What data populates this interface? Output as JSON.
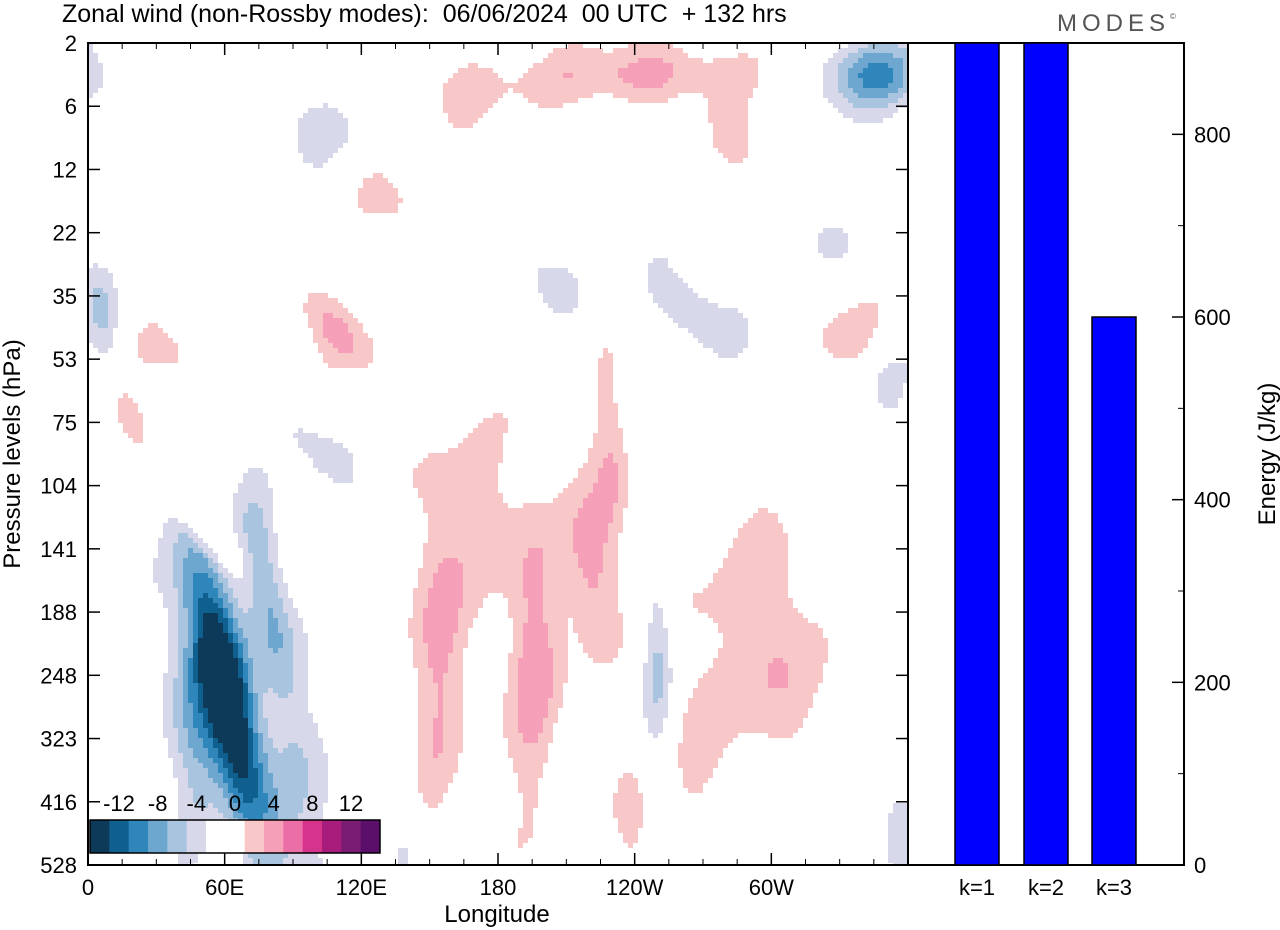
{
  "header": {
    "title": "Zonal wind (non-Rossby modes):  06/06/2024  00 UTC  + 132 hrs",
    "brand": "MODES",
    "brand_mark": "©"
  },
  "chart_data": [
    {
      "type": "heatmap",
      "xlabel": "Longitude",
      "ylabel": "Pressure levels (hPa)",
      "x_ticks": [
        "0",
        "60E",
        "120E",
        "180",
        "120W",
        "60W"
      ],
      "x_tick_values": [
        0,
        60,
        120,
        180,
        240,
        300
      ],
      "xlim": [
        0,
        360
      ],
      "y_ticks": [
        "2",
        "6",
        "12",
        "22",
        "35",
        "53",
        "75",
        "104",
        "141",
        "188",
        "248",
        "323",
        "416",
        "528"
      ],
      "colorbar": {
        "labels": [
          "-12",
          "-8",
          "-4",
          "0",
          "4",
          "8",
          "12"
        ],
        "label_values": [
          -12,
          -8,
          -4,
          0,
          4,
          8,
          12
        ],
        "colors": [
          "#0e3a5a",
          "#0f5f8f",
          "#2f86bb",
          "#6da6cf",
          "#a9c4df",
          "#d7d9ea",
          "#ffffff",
          "#ffffff",
          "#f8c7c7",
          "#f5a0b8",
          "#ec6ea6",
          "#d6338c",
          "#a81c7c",
          "#7a1c72",
          "#5b0f6a"
        ]
      },
      "blobs": [
        {
          "lon": 60,
          "lev": 10.2,
          "a": -15,
          "sx": 12,
          "sy": 1.6,
          "r": 0.75
        },
        {
          "lon": 80,
          "lev": 8.9,
          "a": -6,
          "sx": 9,
          "sy": 1.3,
          "r": 0.65
        },
        {
          "lon": 45,
          "lev": 10.6,
          "a": -4,
          "sx": 8,
          "sy": 1.2,
          "r": 0.3
        },
        {
          "lon": 65,
          "lev": 11.4,
          "a": -3,
          "sx": 22,
          "sy": 1.6,
          "r": 0.2
        },
        {
          "lon": 50,
          "lev": 7.6,
          "a": 5,
          "sx": 12,
          "sy": 0.5,
          "r": 0.85
        },
        {
          "lon": 100,
          "lev": 6.4,
          "a": -3,
          "sx": 14,
          "sy": 0.5,
          "r": 0.8
        },
        {
          "lon": 43,
          "lev": 5.1,
          "a": 2.5,
          "sx": 16,
          "sy": 0.45,
          "r": 0.7
        },
        {
          "lon": 108,
          "lev": 4.5,
          "a": 4.5,
          "sx": 14,
          "sy": 0.5,
          "r": 0.7
        },
        {
          "lon": 5,
          "lev": 4.2,
          "a": -4,
          "sx": 6,
          "sy": 0.6,
          "r": 0.5
        },
        {
          "lon": 153,
          "lev": 9.5,
          "a": 4.5,
          "sx": 9,
          "sy": 1.8,
          "r": 0
        },
        {
          "lon": 195,
          "lev": 9.6,
          "a": 5,
          "sx": 9,
          "sy": 1.8,
          "r": 0
        },
        {
          "lon": 222,
          "lev": 8.4,
          "a": 5,
          "sx": 8,
          "sy": 1.0,
          "r": 0.2
        },
        {
          "lon": 265,
          "lev": 10.2,
          "a": 2.5,
          "sx": 10,
          "sy": 2.0,
          "r": 0
        },
        {
          "lon": 300,
          "lev": 9.5,
          "a": 4.5,
          "sx": 13,
          "sy": 1.4,
          "r": 0
        },
        {
          "lon": 250,
          "lev": 9.7,
          "a": -5,
          "sx": 5,
          "sy": 1.1,
          "r": 0
        },
        {
          "lon": 240,
          "lev": 12.5,
          "a": 3,
          "sx": 6,
          "sy": 0.7,
          "r": 0
        },
        {
          "lon": 345,
          "lev": 0.5,
          "a": -8,
          "sx": 16,
          "sy": 0.4,
          "r": 0
        },
        {
          "lon": 245,
          "lev": 0.5,
          "a": 5,
          "sx": 30,
          "sy": 0.35,
          "r": -0.2
        },
        {
          "lon": 265,
          "lev": 4.2,
          "a": -4,
          "sx": 15,
          "sy": 0.5,
          "r": 0.6
        },
        {
          "lon": 230,
          "lev": 6.6,
          "a": 4,
          "sx": 6,
          "sy": 1.0,
          "r": 0
        },
        {
          "lon": 170,
          "lev": 7.4,
          "a": 2.5,
          "sx": 14,
          "sy": 1.0,
          "r": 0
        },
        {
          "lon": 60,
          "lev": 14.0,
          "a": 4,
          "sx": 8,
          "sy": 1.4,
          "r": 0
        },
        {
          "lon": 100,
          "lev": 12.8,
          "a": -2.5,
          "sx": 12,
          "sy": 1.1,
          "r": 0
        },
        {
          "lon": 335,
          "lev": 4.6,
          "a": 3,
          "sx": 14,
          "sy": 0.5,
          "r": 0
        },
        {
          "lon": 350,
          "lev": 5.2,
          "a": -3,
          "sx": 8,
          "sy": 0.6,
          "r": 0
        },
        {
          "lon": 160,
          "lev": 0.7,
          "a": 2.5,
          "sx": 25,
          "sy": 0.45,
          "r": -0.2
        },
        {
          "lon": 100,
          "lev": 1.3,
          "a": -2.5,
          "sx": 20,
          "sy": 0.45,
          "r": 0.3
        },
        {
          "lon": 20,
          "lev": 6.0,
          "a": 2.5,
          "sx": 12,
          "sy": 0.5,
          "r": 0.6
        },
        {
          "lon": 135,
          "lev": 2.6,
          "a": 2.5,
          "sx": 12,
          "sy": 0.6,
          "r": 0.5
        },
        {
          "lon": 285,
          "lev": 1.6,
          "a": 2.5,
          "sx": 10,
          "sy": 0.5,
          "r": 0.4
        },
        {
          "lon": 320,
          "lev": 3.0,
          "a": -2.5,
          "sx": 10,
          "sy": 0.4,
          "r": 0
        },
        {
          "lon": 200,
          "lev": 3.7,
          "a": -2.5,
          "sx": 12,
          "sy": 0.4,
          "r": 0.6
        },
        {
          "lon": 355,
          "lev": 12.4,
          "a": -2.5,
          "sx": 6,
          "sy": 0.8,
          "r": 0
        },
        {
          "lon": 140,
          "lev": 13.0,
          "a": -2.2,
          "sx": 5,
          "sy": 0.9,
          "r": 0
        }
      ]
    },
    {
      "type": "bar",
      "categories": [
        "k=1",
        "k=2",
        "k=3"
      ],
      "values": [
        900,
        900,
        600
      ],
      "ylim": [
        0,
        900
      ],
      "y_ticks": [
        0,
        200,
        400,
        600,
        800
      ],
      "ylabel": "Energy (J/kg)",
      "bar_color": "#0000ff"
    }
  ]
}
